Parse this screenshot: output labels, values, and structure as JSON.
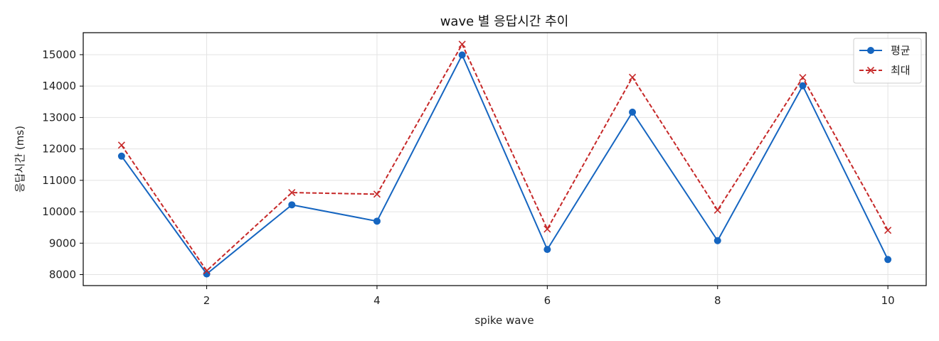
{
  "chart_data": {
    "type": "line",
    "title": "wave 별 응답시간 추이",
    "xlabel": "spike wave",
    "ylabel": "응답시간 (ms)",
    "x": [
      1,
      2,
      3,
      4,
      5,
      6,
      7,
      8,
      9,
      10
    ],
    "xlim": [
      0.55,
      10.45
    ],
    "ylim": [
      7650,
      15700
    ],
    "xticks": [
      2,
      4,
      6,
      8,
      10
    ],
    "yticks": [
      8000,
      9000,
      10000,
      11000,
      12000,
      13000,
      14000,
      15000
    ],
    "grid": true,
    "legend_position": "top-right",
    "series": [
      {
        "name": "평균",
        "values": [
          11770,
          8020,
          10220,
          9700,
          14990,
          8800,
          13170,
          9080,
          14010,
          8480
        ],
        "color": "#1565c0",
        "line_style": "solid",
        "marker": "circle"
      },
      {
        "name": "최대",
        "values": [
          12120,
          8120,
          10610,
          10560,
          15330,
          9450,
          14280,
          10050,
          14270,
          9410
        ],
        "color": "#c62828",
        "line_style": "dashed",
        "marker": "x"
      }
    ]
  }
}
